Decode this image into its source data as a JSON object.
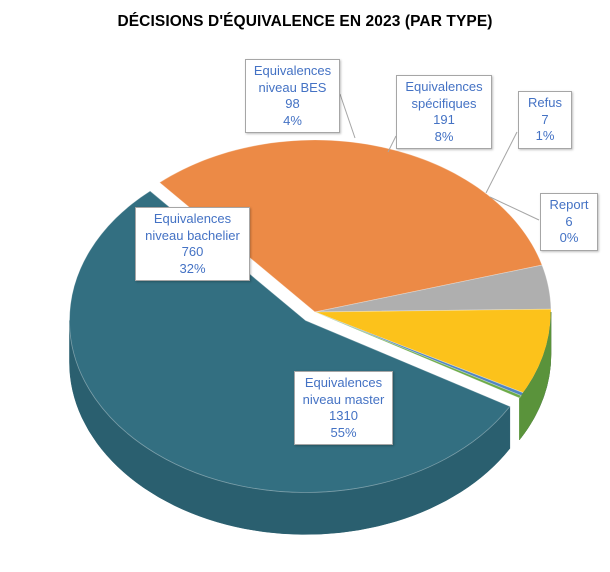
{
  "chart_data": {
    "type": "pie",
    "title": "DÉCISIONS D'ÉQUIVALENCE EN 2023 (PAR TYPE)",
    "slices": [
      {
        "label_lines": [
          "Equivalences",
          "niveau master"
        ],
        "value": 1310,
        "percent": "55%",
        "color": "#336f81",
        "side_color": "#2a5f6f",
        "exploded": true
      },
      {
        "label_lines": [
          "Equivalences",
          "niveau bachelier"
        ],
        "value": 760,
        "percent": "32%",
        "color": "#ec8a46",
        "side_color": "#d27435",
        "exploded": false
      },
      {
        "label_lines": [
          "Equivalences",
          "niveau BES"
        ],
        "value": 98,
        "percent": "4%",
        "color": "#afafaf",
        "side_color": "#949494",
        "exploded": false
      },
      {
        "label_lines": [
          "Equivalences",
          "spécifiques"
        ],
        "value": 191,
        "percent": "8%",
        "color": "#fcc21b",
        "side_color": "#dba510",
        "exploded": false
      },
      {
        "label_lines": [
          "Refus"
        ],
        "value": 7,
        "percent": "1%",
        "color": "#5185c2",
        "side_color": "#4470a8",
        "exploded": false
      },
      {
        "label_lines": [
          "Report"
        ],
        "value": 6,
        "percent": "0%",
        "color": "#6cab48",
        "side_color": "#5a933b",
        "exploded": false
      }
    ]
  }
}
